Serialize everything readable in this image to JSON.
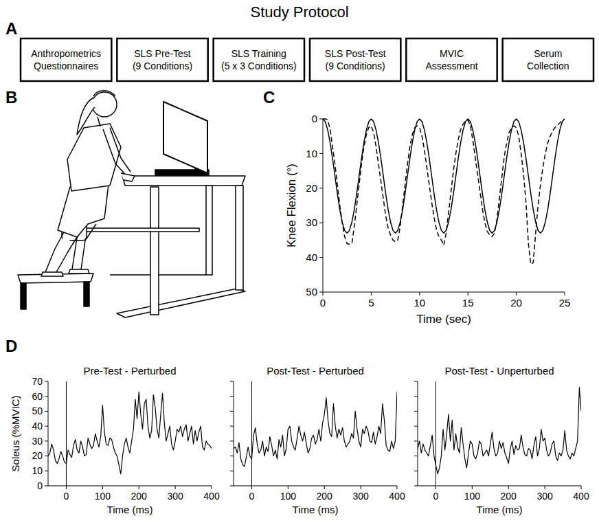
{
  "title": "Study Protocol",
  "panel_labels": [
    "A",
    "B",
    "C",
    "D"
  ],
  "protocol": {
    "steps": [
      {
        "lines": [
          "Anthropometrics",
          "Questionnaires"
        ]
      },
      {
        "lines": [
          "SLS Pre-Test",
          "(9 Conditions)"
        ]
      },
      {
        "lines": [
          "SLS Training",
          "(5 x 3 Conditions)"
        ]
      },
      {
        "lines": [
          "SLS Post-Test",
          "(9 Conditions)"
        ]
      },
      {
        "lines": [
          "MVIC",
          "Assessment"
        ]
      },
      {
        "lines": [
          "Serum",
          "Collection"
        ]
      }
    ]
  },
  "chart_data": [
    {
      "type": "line",
      "x_label": "Time (sec)",
      "y_label": "Knee Flexion (°)",
      "x": [
        0,
        0.25,
        0.5,
        0.75,
        1,
        1.25,
        1.5,
        1.75,
        2,
        2.25,
        2.5,
        2.75,
        3,
        3.25,
        3.5,
        3.75,
        4,
        4.25,
        4.5,
        4.75,
        5,
        5.25,
        5.5,
        5.75,
        6,
        6.25,
        6.5,
        6.75,
        7,
        7.25,
        7.5,
        7.75,
        8,
        8.25,
        8.5,
        8.75,
        9,
        9.25,
        9.5,
        9.75,
        10,
        10.25,
        10.5,
        10.75,
        11,
        11.25,
        11.5,
        11.75,
        12,
        12.25,
        12.5,
        12.75,
        13,
        13.25,
        13.5,
        13.75,
        14,
        14.25,
        14.5,
        14.75,
        15,
        15.25,
        15.5,
        15.75,
        16,
        16.25,
        16.5,
        16.75,
        17,
        17.25,
        17.5,
        17.75,
        18,
        18.25,
        18.5,
        18.75,
        19,
        19.25,
        19.5,
        19.75,
        20,
        20.25,
        20.5,
        20.75,
        21,
        21.25,
        21.5,
        21.75,
        22,
        22.25,
        22.5,
        22.75,
        23,
        23.25,
        23.5,
        23.75,
        24,
        24.25,
        24.5,
        24.75,
        25
      ],
      "xlim": [
        0,
        25
      ],
      "xticks": [
        0,
        5,
        10,
        15,
        20,
        25
      ],
      "ylim": [
        50,
        0
      ],
      "yticks": [
        0,
        10,
        20,
        30,
        40,
        50
      ],
      "series": [
        {
          "color": "#000000",
          "line_style": "solid",
          "values": [
            0,
            0.8,
            3.2,
            6.8,
            11.4,
            16.5,
            21.6,
            26.2,
            29.8,
            32.2,
            33,
            32.2,
            29.8,
            26.2,
            21.6,
            16.5,
            11.4,
            6.8,
            3.2,
            0.8,
            0,
            0.8,
            3.2,
            6.8,
            11.4,
            16.5,
            21.6,
            26.2,
            29.8,
            32.2,
            33,
            32.2,
            29.8,
            26.2,
            21.6,
            16.5,
            11.4,
            6.8,
            3.2,
            0.8,
            0,
            0.8,
            3.2,
            6.8,
            11.4,
            16.5,
            21.6,
            26.2,
            29.8,
            32.2,
            33,
            32.2,
            29.8,
            26.2,
            21.6,
            16.5,
            11.4,
            6.8,
            3.2,
            0.8,
            0,
            0.8,
            3.2,
            6.8,
            11.4,
            16.5,
            21.6,
            26.2,
            29.8,
            32.2,
            33,
            32.2,
            29.8,
            26.2,
            21.6,
            16.5,
            11.4,
            6.8,
            3.2,
            0.8,
            0,
            0.8,
            3.2,
            6.8,
            11.4,
            16.5,
            21.6,
            26.2,
            29.8,
            32.2,
            33,
            32.2,
            29.8,
            26.2,
            21.6,
            16.5,
            11.4,
            6.8,
            3.2,
            0.8,
            0
          ]
        },
        {
          "color": "#000000",
          "line_style": "dashed",
          "values": [
            0,
            0,
            0.3,
            3,
            8,
            13,
            19,
            25,
            30,
            34,
            36,
            36.2,
            36,
            31,
            25,
            19,
            13,
            8,
            4.5,
            2.5,
            2,
            4,
            8,
            13,
            18,
            23,
            28,
            31.5,
            33.5,
            35,
            35.5,
            35,
            31,
            25,
            19,
            13,
            8,
            4.5,
            2.5,
            2,
            2.5,
            5,
            9,
            14,
            19,
            24,
            28.5,
            32,
            34,
            35,
            36.5,
            33,
            27,
            21,
            15,
            10,
            6,
            3,
            1.5,
            0.5,
            0.3,
            2,
            6,
            11,
            16,
            21,
            26,
            30,
            32.5,
            33.5,
            34,
            33,
            29,
            23,
            17,
            11,
            7,
            4,
            2.5,
            2,
            2.5,
            5,
            10,
            16,
            24,
            36,
            42,
            41.5,
            33,
            25,
            19,
            14,
            10,
            7,
            5,
            3.5,
            2.5,
            1.8,
            1.2,
            0.5,
            0
          ]
        }
      ]
    },
    {
      "type": "line",
      "title": "Pre-Test - Perturbed",
      "x_label": "Time (ms)",
      "y_label": "Soleus (%MVIC)",
      "x": [
        -50,
        -45,
        -40,
        -35,
        -30,
        -25,
        -20,
        -15,
        -10,
        -5,
        0,
        5,
        10,
        15,
        20,
        25,
        30,
        35,
        40,
        45,
        50,
        55,
        60,
        65,
        70,
        75,
        80,
        85,
        90,
        95,
        100,
        105,
        110,
        115,
        120,
        125,
        130,
        135,
        140,
        145,
        150,
        155,
        160,
        165,
        170,
        175,
        180,
        185,
        190,
        195,
        200,
        205,
        210,
        215,
        220,
        225,
        230,
        235,
        240,
        245,
        250,
        255,
        260,
        265,
        270,
        275,
        280,
        285,
        290,
        295,
        300,
        305,
        310,
        315,
        320,
        325,
        330,
        335,
        340,
        345,
        350,
        355,
        360,
        365,
        370,
        375,
        380,
        385,
        390,
        395,
        400
      ],
      "xlim": [
        -50,
        400
      ],
      "xticks": [
        0,
        100,
        200,
        300,
        400
      ],
      "ylim": [
        0,
        70
      ],
      "yticks": [
        0,
        10,
        20,
        30,
        40,
        50,
        60,
        70
      ],
      "vline": 0,
      "series": [
        {
          "color": "#000000",
          "line_style": "solid",
          "values": [
            20,
            22,
            28,
            24,
            17,
            15,
            18,
            23,
            20,
            16,
            15,
            24,
            21,
            19,
            27,
            31,
            24,
            22,
            30,
            26,
            20,
            21,
            32,
            28,
            25,
            27,
            35,
            30,
            26,
            33,
            54,
            36,
            28,
            27,
            32,
            31,
            26,
            22,
            20,
            14,
            8,
            20,
            28,
            32,
            26,
            22,
            30,
            38,
            58,
            45,
            63,
            48,
            38,
            55,
            58,
            40,
            32,
            37,
            61,
            52,
            38,
            32,
            48,
            62,
            42,
            30,
            35,
            40,
            28,
            24,
            30,
            38,
            36,
            40,
            33,
            38,
            41,
            30,
            35,
            40,
            28,
            37,
            30,
            36,
            40,
            26,
            24,
            30,
            28,
            27,
            25
          ]
        }
      ]
    },
    {
      "type": "line",
      "title": "Post-Test - Perturbed",
      "x_label": "Time (ms)",
      "tick_labels": "x",
      "x": [
        -50,
        -45,
        -40,
        -35,
        -30,
        -25,
        -20,
        -15,
        -10,
        -5,
        0,
        5,
        10,
        15,
        20,
        25,
        30,
        35,
        40,
        45,
        50,
        55,
        60,
        65,
        70,
        75,
        80,
        85,
        90,
        95,
        100,
        105,
        110,
        115,
        120,
        125,
        130,
        135,
        140,
        145,
        150,
        155,
        160,
        165,
        170,
        175,
        180,
        185,
        190,
        195,
        200,
        205,
        210,
        215,
        220,
        225,
        230,
        235,
        240,
        245,
        250,
        255,
        260,
        265,
        270,
        275,
        280,
        285,
        290,
        295,
        300,
        305,
        310,
        315,
        320,
        325,
        330,
        335,
        340,
        345,
        350,
        355,
        360,
        365,
        370,
        375,
        380,
        385,
        390,
        395,
        400
      ],
      "xlim": [
        -50,
        400
      ],
      "xticks": [
        0,
        100,
        200,
        300,
        400
      ],
      "ylim": [
        0,
        70
      ],
      "yticks": [
        0,
        10,
        20,
        30,
        40,
        50,
        60,
        70
      ],
      "vline": 0,
      "series": [
        {
          "color": "#000000",
          "line_style": "solid",
          "values": [
            25,
            26,
            22,
            29,
            18,
            14,
            13,
            19,
            26,
            20,
            18,
            34,
            39,
            28,
            22,
            24,
            30,
            20,
            26,
            23,
            33,
            27,
            20,
            24,
            18,
            31,
            26,
            34,
            20,
            25,
            38,
            40,
            30,
            26,
            24,
            32,
            40,
            34,
            30,
            36,
            29,
            22,
            25,
            32,
            34,
            28,
            31,
            38,
            30,
            42,
            48,
            59,
            44,
            35,
            33,
            55,
            40,
            32,
            38,
            34,
            39,
            30,
            26,
            28,
            30,
            35,
            32,
            50,
            38,
            30,
            26,
            38,
            35,
            40,
            37,
            30,
            29,
            36,
            28,
            33,
            40,
            35,
            55,
            44,
            27,
            24,
            23,
            30,
            25,
            30,
            63
          ]
        }
      ]
    },
    {
      "type": "line",
      "title": "Post-Test - Unperturbed",
      "x_label": "Time (ms)",
      "tick_labels": "x",
      "x": [
        -50,
        -45,
        -40,
        -35,
        -30,
        -25,
        -20,
        -15,
        -10,
        -5,
        0,
        5,
        10,
        15,
        20,
        25,
        30,
        35,
        40,
        45,
        50,
        55,
        60,
        65,
        70,
        75,
        80,
        85,
        90,
        95,
        100,
        105,
        110,
        115,
        120,
        125,
        130,
        135,
        140,
        145,
        150,
        155,
        160,
        165,
        170,
        175,
        180,
        185,
        190,
        195,
        200,
        205,
        210,
        215,
        220,
        225,
        230,
        235,
        240,
        245,
        250,
        255,
        260,
        265,
        270,
        275,
        280,
        285,
        290,
        295,
        300,
        305,
        310,
        315,
        320,
        325,
        330,
        335,
        340,
        345,
        350,
        355,
        360,
        365,
        370,
        375,
        380,
        385,
        390,
        395,
        400
      ],
      "xlim": [
        -50,
        400
      ],
      "xticks": [
        0,
        100,
        200,
        300,
        400
      ],
      "ylim": [
        0,
        70
      ],
      "yticks": [
        0,
        10,
        20,
        30,
        40,
        50,
        60,
        70
      ],
      "vline": 0,
      "series": [
        {
          "color": "#000000",
          "line_style": "solid",
          "values": [
            25,
            30,
            22,
            28,
            24,
            22,
            20,
            27,
            34,
            20,
            14,
            8,
            12,
            20,
            38,
            24,
            35,
            48,
            30,
            44,
            24,
            35,
            26,
            22,
            39,
            28,
            18,
            12,
            22,
            30,
            28,
            20,
            18,
            22,
            30,
            28,
            20,
            22,
            24,
            20,
            28,
            36,
            25,
            20,
            22,
            30,
            25,
            29,
            22,
            19,
            15,
            25,
            30,
            21,
            27,
            24,
            25,
            34,
            26,
            21,
            20,
            25,
            24,
            18,
            27,
            33,
            20,
            25,
            38,
            30,
            32,
            24,
            20,
            22,
            28,
            30,
            20,
            17,
            22,
            20,
            24,
            37,
            24,
            20,
            18,
            22,
            20,
            25,
            30,
            66,
            50
          ]
        }
      ]
    }
  ]
}
